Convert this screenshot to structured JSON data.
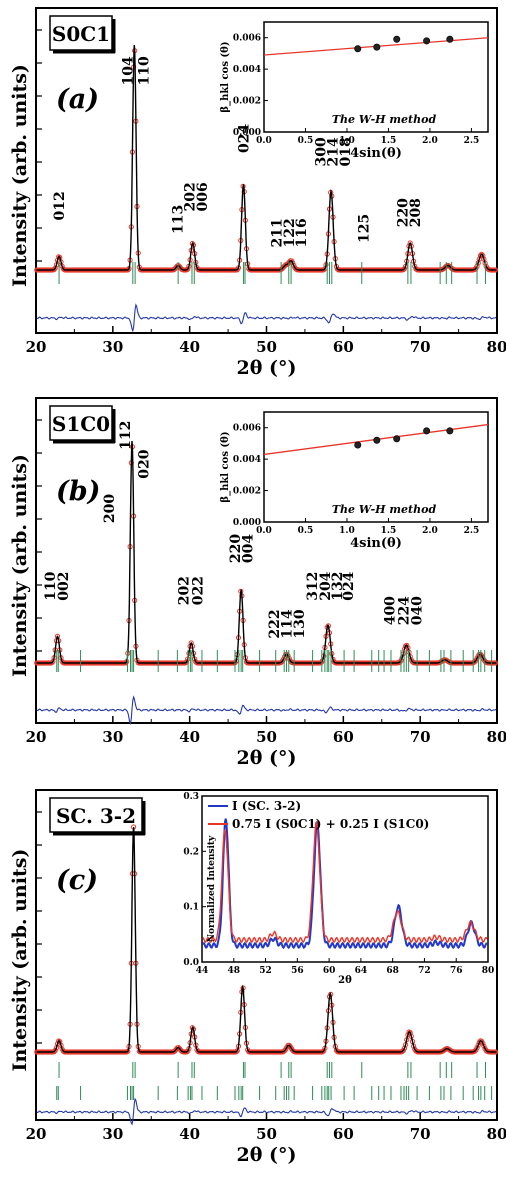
{
  "colors": {
    "observed": "#e8362a",
    "calculated": "#000000",
    "difference": "#2438a8",
    "bragg": "#2e8b57",
    "fit_line": "#e8362a",
    "inset_blue": "#2438c8",
    "inset_red": "#e8362a"
  },
  "chart_data": [
    {
      "type": "line",
      "panel_tag": "(a)",
      "sample_label": "S0C1",
      "xlabel": "2θ (°)",
      "ylabel": "Intensity (arb. units)",
      "xlim": [
        20,
        80
      ],
      "xticks": [
        20,
        30,
        40,
        50,
        60,
        70,
        80
      ],
      "peaks": [
        {
          "two_theta": 23.0,
          "height": 0.06,
          "width": 0.25
        },
        {
          "two_theta": 32.8,
          "height": 1.0,
          "width": 0.22
        },
        {
          "two_theta": 38.5,
          "height": 0.02,
          "width": 0.25
        },
        {
          "two_theta": 40.4,
          "height": 0.12,
          "width": 0.25
        },
        {
          "two_theta": 47.0,
          "height": 0.38,
          "width": 0.24
        },
        {
          "two_theta": 52.5,
          "height": 0.02,
          "width": 0.3
        },
        {
          "two_theta": 53.2,
          "height": 0.04,
          "width": 0.3
        },
        {
          "two_theta": 58.4,
          "height": 0.35,
          "width": 0.28
        },
        {
          "two_theta": 68.7,
          "height": 0.12,
          "width": 0.3
        },
        {
          "two_theta": 73.6,
          "height": 0.02,
          "width": 0.35
        },
        {
          "two_theta": 78.0,
          "height": 0.07,
          "width": 0.35
        }
      ],
      "bragg_positions": [
        23.0,
        32.6,
        32.9,
        38.5,
        40.3,
        40.6,
        47.0,
        47.2,
        51.9,
        52.9,
        53.2,
        57.9,
        58.2,
        58.5,
        62.4,
        68.4,
        68.8,
        72.6,
        73.4,
        74.1,
        77.4,
        78.5
      ],
      "hkl_labels": [
        {
          "text": "012",
          "two_theta": 23.0,
          "level": 0.22
        },
        {
          "text": "104",
          "two_theta": 31.9,
          "level": 0.82
        },
        {
          "text": "110",
          "two_theta": 34.0,
          "level": 0.82
        },
        {
          "text": "113",
          "two_theta": 38.4,
          "level": 0.16
        },
        {
          "text": "202",
          "two_theta": 40.0,
          "level": 0.26
        },
        {
          "text": "006",
          "two_theta": 41.6,
          "level": 0.26
        },
        {
          "text": "024",
          "two_theta": 47.0,
          "level": 0.52
        },
        {
          "text": "211",
          "two_theta": 51.3,
          "level": 0.1
        },
        {
          "text": "122",
          "two_theta": 52.9,
          "level": 0.1
        },
        {
          "text": "116",
          "two_theta": 54.5,
          "level": 0.1
        },
        {
          "text": "300",
          "two_theta": 57.0,
          "level": 0.46
        },
        {
          "text": "214",
          "two_theta": 58.6,
          "level": 0.46
        },
        {
          "text": "018",
          "two_theta": 60.2,
          "level": 0.46
        },
        {
          "text": "125",
          "two_theta": 62.6,
          "level": 0.12
        },
        {
          "text": "220",
          "two_theta": 67.7,
          "level": 0.19
        },
        {
          "text": "208",
          "two_theta": 69.3,
          "level": 0.19
        }
      ],
      "inset": {
        "type": "scatter",
        "title": "The W-H method",
        "xlabel": "4sin(θ)",
        "ylabel": "β_hkl cos (θ)",
        "xlim": [
          0.0,
          2.7
        ],
        "ylim": [
          0.0,
          0.007
        ],
        "xticks": [
          "0.0",
          "0.5",
          "1.0",
          "1.5",
          "2.0",
          "2.5"
        ],
        "yticks": [
          "0.000",
          "0.002",
          "0.004",
          "0.006"
        ],
        "points": [
          [
            1.13,
            0.0053
          ],
          [
            1.36,
            0.0054
          ],
          [
            1.6,
            0.0059
          ],
          [
            1.96,
            0.0058
          ],
          [
            2.24,
            0.0059
          ]
        ],
        "fit": {
          "x": [
            0.0,
            2.7
          ],
          "y": [
            0.0049,
            0.006
          ]
        }
      }
    },
    {
      "type": "line",
      "panel_tag": "(b)",
      "sample_label": "S1C0",
      "xlabel": "2θ (°)",
      "ylabel": "Intensity (arb. units)",
      "xlim": [
        20,
        80
      ],
      "xticks": [
        20,
        30,
        40,
        50,
        60,
        70,
        80
      ],
      "peaks": [
        {
          "two_theta": 22.8,
          "height": 0.12,
          "width": 0.25
        },
        {
          "two_theta": 32.5,
          "height": 1.0,
          "width": 0.22
        },
        {
          "two_theta": 40.2,
          "height": 0.09,
          "width": 0.25
        },
        {
          "two_theta": 46.7,
          "height": 0.33,
          "width": 0.24
        },
        {
          "two_theta": 52.6,
          "height": 0.04,
          "width": 0.3
        },
        {
          "two_theta": 58.0,
          "height": 0.17,
          "width": 0.3
        },
        {
          "two_theta": 68.2,
          "height": 0.08,
          "width": 0.35
        },
        {
          "two_theta": 73.2,
          "height": 0.015,
          "width": 0.35
        },
        {
          "two_theta": 77.8,
          "height": 0.04,
          "width": 0.35
        }
      ],
      "bragg_positions": [
        22.7,
        22.9,
        25.8,
        31.9,
        32.3,
        32.5,
        32.7,
        35.9,
        38.4,
        39.8,
        40.1,
        40.3,
        41.6,
        43.6,
        45.9,
        46.4,
        46.7,
        46.9,
        49.1,
        51.2,
        52.3,
        52.6,
        52.9,
        53.6,
        56.0,
        57.2,
        57.6,
        57.9,
        58.1,
        58.4,
        60.1,
        61.4,
        63.7,
        64.6,
        65.3,
        66.2,
        67.5,
        67.9,
        68.2,
        68.5,
        69.6,
        71.2,
        72.7,
        73.1,
        74.0,
        75.6,
        76.9,
        77.6,
        77.9,
        78.4,
        79.3
      ],
      "hkl_labels": [
        {
          "text": "110",
          "two_theta": 21.8,
          "level": 0.28
        },
        {
          "text": "002",
          "two_theta": 23.5,
          "level": 0.28
        },
        {
          "text": "200",
          "two_theta": 29.5,
          "level": 0.63
        },
        {
          "text": "112",
          "two_theta": 31.6,
          "level": 0.96
        },
        {
          "text": "020",
          "two_theta": 34.0,
          "level": 0.83
        },
        {
          "text": "202",
          "two_theta": 39.2,
          "level": 0.26
        },
        {
          "text": "022",
          "two_theta": 41.0,
          "level": 0.26
        },
        {
          "text": "220",
          "two_theta": 45.9,
          "level": 0.45
        },
        {
          "text": "004",
          "two_theta": 47.5,
          "level": 0.45
        },
        {
          "text": "222",
          "two_theta": 51.0,
          "level": 0.11
        },
        {
          "text": "114",
          "two_theta": 52.6,
          "level": 0.11
        },
        {
          "text": "130",
          "two_theta": 54.2,
          "level": 0.11
        },
        {
          "text": "312",
          "two_theta": 55.9,
          "level": 0.28
        },
        {
          "text": "204",
          "two_theta": 57.6,
          "level": 0.28
        },
        {
          "text": "132",
          "two_theta": 59.2,
          "level": 0.28
        },
        {
          "text": "024",
          "two_theta": 60.6,
          "level": 0.28
        },
        {
          "text": "400",
          "two_theta": 66.0,
          "level": 0.17
        },
        {
          "text": "224",
          "two_theta": 67.8,
          "level": 0.17
        },
        {
          "text": "040",
          "two_theta": 69.5,
          "level": 0.17
        }
      ],
      "inset": {
        "type": "scatter",
        "title": "The W-H method",
        "xlabel": "4sin(θ)",
        "ylabel": "β_hkl cos (θ)",
        "xlim": [
          0.0,
          2.7
        ],
        "ylim": [
          0.0,
          0.007
        ],
        "xticks": [
          "0.0",
          "0.5",
          "1.0",
          "1.5",
          "2.0",
          "2.5"
        ],
        "yticks": [
          "0.000",
          "0.002",
          "0.004",
          "0.006"
        ],
        "points": [
          [
            1.13,
            0.0049
          ],
          [
            1.36,
            0.0052
          ],
          [
            1.6,
            0.0053
          ],
          [
            1.96,
            0.0058
          ],
          [
            2.24,
            0.0058
          ]
        ],
        "fit": {
          "x": [
            0.0,
            2.7
          ],
          "y": [
            0.0043,
            0.0062
          ]
        }
      }
    },
    {
      "type": "line",
      "panel_tag": "(c)",
      "sample_label": "SC. 3-2",
      "xlabel": "2θ (°)",
      "ylabel": "Intensity (arb. units)",
      "xlim": [
        20,
        80
      ],
      "xticks": [
        20,
        30,
        40,
        50,
        60,
        70,
        80
      ],
      "peaks": [
        {
          "two_theta": 23.0,
          "height": 0.05,
          "width": 0.25
        },
        {
          "two_theta": 32.7,
          "height": 1.0,
          "width": 0.22
        },
        {
          "two_theta": 38.5,
          "height": 0.02,
          "width": 0.25
        },
        {
          "two_theta": 40.4,
          "height": 0.11,
          "width": 0.25
        },
        {
          "two_theta": 46.9,
          "height": 0.29,
          "width": 0.25
        },
        {
          "two_theta": 52.9,
          "height": 0.03,
          "width": 0.3
        },
        {
          "two_theta": 58.3,
          "height": 0.26,
          "width": 0.3
        },
        {
          "two_theta": 68.6,
          "height": 0.09,
          "width": 0.35
        },
        {
          "two_theta": 73.5,
          "height": 0.015,
          "width": 0.35
        },
        {
          "two_theta": 77.9,
          "height": 0.05,
          "width": 0.35
        }
      ],
      "bragg_positions_phase1": [
        23.0,
        32.6,
        32.9,
        38.5,
        40.3,
        40.6,
        47.0,
        47.2,
        51.9,
        52.9,
        53.2,
        57.9,
        58.2,
        58.5,
        62.4,
        68.4,
        68.8,
        72.6,
        73.4,
        74.1,
        77.4,
        78.5
      ],
      "bragg_positions_phase2": [
        22.7,
        22.9,
        25.8,
        31.9,
        32.3,
        32.5,
        32.7,
        35.9,
        38.4,
        39.8,
        40.1,
        40.3,
        41.6,
        43.6,
        45.9,
        46.4,
        46.7,
        46.9,
        49.1,
        51.2,
        52.3,
        52.6,
        52.9,
        53.6,
        56.0,
        57.2,
        57.6,
        57.9,
        58.1,
        58.4,
        60.1,
        61.4,
        63.7,
        64.6,
        65.3,
        66.2,
        67.5,
        67.9,
        68.2,
        68.5,
        69.6,
        71.2,
        72.7,
        73.1,
        74.0,
        75.6,
        76.9,
        77.6,
        77.9,
        78.4,
        79.3
      ],
      "inset": {
        "type": "line",
        "xlabel": "2θ",
        "ylabel": "Normalized Intensity",
        "xlim": [
          44,
          80
        ],
        "ylim": [
          0.0,
          0.3
        ],
        "xticks": [
          44,
          48,
          52,
          56,
          60,
          64,
          68,
          72,
          76,
          80
        ],
        "yticks": [
          "0.0",
          "0.1",
          "0.2",
          "0.3"
        ],
        "legend_position": "top-left",
        "series": [
          {
            "name": "I (SC. 3-2)",
            "color_key": "inset_blue",
            "baseline": 0.03,
            "peaks": [
              [
                47.0,
                0.23,
                0.35
              ],
              [
                53.0,
                0.012,
                0.4
              ],
              [
                58.5,
                0.22,
                0.4
              ],
              [
                68.7,
                0.07,
                0.45
              ],
              [
                73.5,
                0.005,
                0.5
              ],
              [
                77.9,
                0.04,
                0.45
              ]
            ]
          },
          {
            "name": "0.75 I (S0C1) + 0.25 I (S1C0)",
            "color_key": "inset_red",
            "baseline": 0.04,
            "peaks": [
              [
                46.9,
                0.2,
                0.38
              ],
              [
                53.0,
                0.012,
                0.4
              ],
              [
                58.4,
                0.21,
                0.42
              ],
              [
                68.6,
                0.05,
                0.5
              ],
              [
                73.5,
                0.005,
                0.5
              ],
              [
                77.8,
                0.03,
                0.5
              ]
            ]
          }
        ]
      }
    }
  ]
}
